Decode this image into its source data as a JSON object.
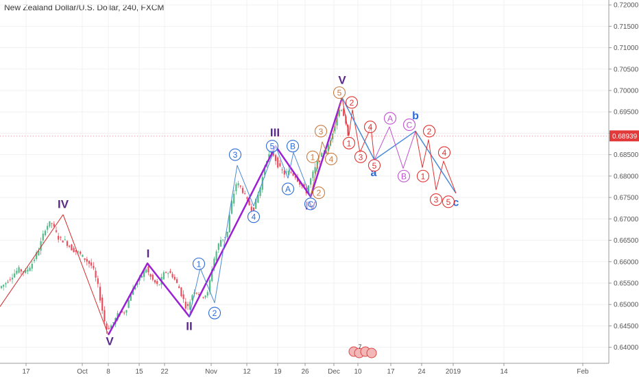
{
  "chart_title": "New Zealand Dollar/U.S. Dollar, 240, FXCM",
  "chart_data": {
    "type": "candlestick",
    "ylim": [
      0.6385,
      0.7205
    ],
    "price_ticks": [
      "0.72000",
      "0.71500",
      "0.71000",
      "0.70500",
      "0.70000",
      "0.69500",
      "0.69000",
      "0.68500",
      "0.68000",
      "0.67500",
      "0.67000",
      "0.66500",
      "0.66000",
      "0.65500",
      "0.65000",
      "0.64500",
      "0.64000"
    ],
    "current_price": "0.68939",
    "x_ticks": [
      "17",
      "Oct",
      "8",
      "15",
      "22",
      "Nov",
      "12",
      "19",
      "26",
      "Dec",
      "10",
      "17",
      "24",
      "2019",
      "14",
      "Feb"
    ],
    "price_path": [
      [
        0,
        0.6536
      ],
      [
        10,
        0.6548
      ],
      [
        20,
        0.6566
      ],
      [
        30,
        0.6582
      ],
      [
        40,
        0.6575
      ],
      [
        50,
        0.6596
      ],
      [
        60,
        0.663
      ],
      [
        70,
        0.6682
      ],
      [
        78,
        0.6692
      ],
      [
        88,
        0.6656
      ],
      [
        98,
        0.6648
      ],
      [
        108,
        0.663
      ],
      [
        118,
        0.662
      ],
      [
        128,
        0.6605
      ],
      [
        138,
        0.6588
      ],
      [
        146,
        0.6542
      ],
      [
        152,
        0.649
      ],
      [
        158,
        0.6442
      ],
      [
        166,
        0.6452
      ],
      [
        176,
        0.6478
      ],
      [
        186,
        0.6484
      ],
      [
        194,
        0.6527
      ],
      [
        204,
        0.6552
      ],
      [
        216,
        0.6585
      ],
      [
        224,
        0.656
      ],
      [
        234,
        0.6542
      ],
      [
        244,
        0.6578
      ],
      [
        254,
        0.657
      ],
      [
        264,
        0.654
      ],
      [
        276,
        0.6488
      ],
      [
        286,
        0.6534
      ],
      [
        298,
        0.652
      ],
      [
        306,
        0.6525
      ],
      [
        314,
        0.66
      ],
      [
        324,
        0.665
      ],
      [
        334,
        0.666
      ],
      [
        340,
        0.673
      ],
      [
        348,
        0.6785
      ],
      [
        356,
        0.677
      ],
      [
        364,
        0.674
      ],
      [
        372,
        0.672
      ],
      [
        382,
        0.6768
      ],
      [
        392,
        0.684
      ],
      [
        400,
        0.6858
      ],
      [
        410,
        0.682
      ],
      [
        418,
        0.6806
      ],
      [
        426,
        0.681
      ],
      [
        434,
        0.68
      ],
      [
        442,
        0.678
      ],
      [
        450,
        0.6764
      ],
      [
        458,
        0.68
      ],
      [
        466,
        0.683
      ],
      [
        476,
        0.6858
      ],
      [
        484,
        0.6876
      ],
      [
        492,
        0.6925
      ],
      [
        500,
        0.6965
      ],
      [
        506,
        0.6935
      ],
      [
        510,
        0.689
      ]
    ],
    "waves": [
      {
        "name": "main",
        "color": "#9b1fd4",
        "width": 2.5,
        "points": [
          [
            158,
            0.6429
          ],
          [
            215,
            0.6596
          ],
          [
            276,
            0.6472
          ],
          [
            402,
            0.687
          ],
          [
            453,
            0.6752
          ],
          [
            499,
            0.6983
          ]
        ]
      },
      {
        "name": "decline",
        "color": "#d42a2a",
        "width": 1,
        "points": [
          [
            92,
            0.671
          ],
          [
            158,
            0.6429
          ]
        ]
      },
      {
        "name": "rise",
        "color": "#d42a2a",
        "width": 1,
        "points": [
          [
            0,
            0.6495
          ],
          [
            92,
            0.671
          ]
        ]
      },
      {
        "name": "minor_ii",
        "color": "#4a8ad8",
        "width": 1,
        "points": [
          [
            276,
            0.6472
          ],
          [
            292,
            0.6585
          ],
          [
            313,
            0.6504
          ],
          [
            346,
            0.6825
          ],
          [
            370,
            0.673
          ],
          [
            402,
            0.687
          ]
        ]
      },
      {
        "name": "minor_iv",
        "color": "#4a8ad8",
        "width": 1,
        "points": [
          [
            402,
            0.687
          ],
          [
            420,
            0.6795
          ],
          [
            428,
            0.6855
          ],
          [
            453,
            0.6752
          ]
        ]
      },
      {
        "name": "minor_v",
        "color": "#c87a40",
        "width": 1,
        "points": [
          [
            453,
            0.6752
          ],
          [
            462,
            0.6818
          ],
          [
            470,
            0.688
          ],
          [
            478,
            0.685
          ],
          [
            499,
            0.6983
          ]
        ]
      },
      {
        "name": "projection_a",
        "color": "#e23030",
        "width": 1,
        "points": [
          [
            499,
            0.6983
          ],
          [
            509,
            0.6895
          ],
          [
            514,
            0.6955
          ],
          [
            525,
            0.6855
          ],
          [
            541,
            0.6915
          ],
          [
            546,
            0.6838
          ]
        ]
      },
      {
        "name": "projection_abc",
        "color": "#4a8ad8",
        "width": 1.5,
        "points": [
          [
            499,
            0.6983
          ],
          [
            546,
            0.6838
          ],
          [
            606,
            0.6905
          ],
          [
            665,
            0.676
          ]
        ]
      },
      {
        "name": "projection_b",
        "color": "#c050d0",
        "width": 1,
        "points": [
          [
            546,
            0.6838
          ],
          [
            568,
            0.6915
          ],
          [
            588,
            0.6818
          ],
          [
            606,
            0.6905
          ]
        ]
      },
      {
        "name": "projection_c",
        "color": "#e23030",
        "width": 1,
        "points": [
          [
            606,
            0.6905
          ],
          [
            616,
            0.682
          ],
          [
            625,
            0.6885
          ],
          [
            636,
            0.6768
          ],
          [
            647,
            0.6835
          ],
          [
            665,
            0.676
          ]
        ]
      }
    ],
    "labels": [
      {
        "text": "IV",
        "x": 92,
        "y": 0.6725,
        "style": "roman",
        "color": "#5a2a8a"
      },
      {
        "text": "V",
        "x": 160,
        "y": 0.6405,
        "style": "roman",
        "color": "#5a2a8a"
      },
      {
        "text": "I",
        "x": 216,
        "y": 0.661,
        "style": "roman",
        "color": "#5a2a8a"
      },
      {
        "text": "II",
        "x": 276,
        "y": 0.644,
        "style": "roman",
        "color": "#5a2a8a"
      },
      {
        "text": "III",
        "x": 401,
        "y": 0.6893,
        "style": "roman",
        "color": "#5a2a8a"
      },
      {
        "text": "IV",
        "x": 453,
        "y": 0.6722,
        "style": "roman",
        "color": "#5a2a8a"
      },
      {
        "text": "V",
        "x": 499,
        "y": 0.7015,
        "style": "roman",
        "color": "#5a2a8a"
      },
      {
        "text": "a",
        "x": 545,
        "y": 0.68,
        "style": "letter",
        "color": "#2a6ad8"
      },
      {
        "text": "b",
        "x": 606,
        "y": 0.6933,
        "style": "letter",
        "color": "#2a6ad8"
      },
      {
        "text": "c",
        "x": 665,
        "y": 0.673,
        "style": "letter",
        "color": "#2a6ad8"
      },
      {
        "text": "1",
        "x": 290,
        "y": 0.6595,
        "style": "circle",
        "color": "#2a6ad8"
      },
      {
        "text": "2",
        "x": 313,
        "y": 0.648,
        "style": "circle",
        "color": "#2a6ad8"
      },
      {
        "text": "3",
        "x": 343,
        "y": 0.685,
        "style": "circle",
        "color": "#2a6ad8"
      },
      {
        "text": "4",
        "x": 370,
        "y": 0.6705,
        "style": "circle",
        "color": "#2a6ad8"
      },
      {
        "text": "5",
        "x": 397,
        "y": 0.687,
        "style": "circle",
        "color": "#2a6ad8"
      },
      {
        "text": "A",
        "x": 420,
        "y": 0.677,
        "style": "circle",
        "color": "#2a6ad8"
      },
      {
        "text": "B",
        "x": 427,
        "y": 0.687,
        "style": "circle",
        "color": "#2a6ad8"
      },
      {
        "text": "C",
        "x": 453,
        "y": 0.6735,
        "style": "circle",
        "color": "#2a6ad8"
      },
      {
        "text": "1",
        "x": 456,
        "y": 0.6845,
        "style": "circle",
        "color": "#c87a40"
      },
      {
        "text": "2",
        "x": 465,
        "y": 0.6761,
        "style": "circle",
        "color": "#c87a40"
      },
      {
        "text": "3",
        "x": 468,
        "y": 0.6905,
        "style": "circle",
        "color": "#c87a40"
      },
      {
        "text": "4",
        "x": 483,
        "y": 0.684,
        "style": "circle",
        "color": "#c87a40"
      },
      {
        "text": "5",
        "x": 495,
        "y": 0.6995,
        "style": "circle",
        "color": "#c87a40"
      },
      {
        "text": "2",
        "x": 513,
        "y": 0.6972,
        "style": "circle",
        "color": "#e23030"
      },
      {
        "text": "1",
        "x": 509,
        "y": 0.6877,
        "style": "circle",
        "color": "#e23030"
      },
      {
        "text": "4",
        "x": 540,
        "y": 0.6915,
        "style": "circle",
        "color": "#e23030"
      },
      {
        "text": "3",
        "x": 526,
        "y": 0.6845,
        "style": "circle",
        "color": "#e23030"
      },
      {
        "text": "5",
        "x": 546,
        "y": 0.6825,
        "style": "circle",
        "color": "#e23030"
      },
      {
        "text": "A",
        "x": 569,
        "y": 0.6935,
        "style": "circle",
        "color": "#c050d0"
      },
      {
        "text": "B",
        "x": 589,
        "y": 0.68,
        "style": "circle",
        "color": "#c050d0"
      },
      {
        "text": "C",
        "x": 597,
        "y": 0.692,
        "style": "circle",
        "color": "#c050d0"
      },
      {
        "text": "2",
        "x": 626,
        "y": 0.6905,
        "style": "circle",
        "color": "#e23030"
      },
      {
        "text": "1",
        "x": 617,
        "y": 0.68,
        "style": "circle",
        "color": "#e23030"
      },
      {
        "text": "4",
        "x": 648,
        "y": 0.6855,
        "style": "circle",
        "color": "#e23030"
      },
      {
        "text": "3",
        "x": 636,
        "y": 0.6745,
        "style": "circle",
        "color": "#e23030"
      },
      {
        "text": "5",
        "x": 654,
        "y": 0.674,
        "style": "circle",
        "color": "#e23030"
      }
    ]
  }
}
